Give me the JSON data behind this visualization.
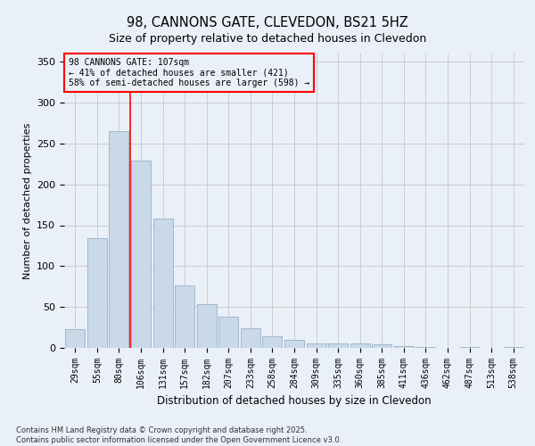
{
  "title1": "98, CANNONS GATE, CLEVEDON, BS21 5HZ",
  "title2": "Size of property relative to detached houses in Clevedon",
  "xlabel": "Distribution of detached houses by size in Clevedon",
  "ylabel": "Number of detached properties",
  "categories": [
    "29sqm",
    "55sqm",
    "80sqm",
    "106sqm",
    "131sqm",
    "157sqm",
    "182sqm",
    "207sqm",
    "233sqm",
    "258sqm",
    "284sqm",
    "309sqm",
    "335sqm",
    "360sqm",
    "385sqm",
    "411sqm",
    "436sqm",
    "462sqm",
    "487sqm",
    "513sqm",
    "538sqm"
  ],
  "values": [
    23,
    134,
    265,
    229,
    158,
    76,
    54,
    38,
    24,
    14,
    10,
    6,
    5,
    5,
    4,
    2,
    1,
    0,
    1,
    0,
    1
  ],
  "bar_color": "#c9d9e8",
  "bar_edge_color": "#a0b8cc",
  "grid_color": "#cccccc",
  "bg_color": "#eaf0f8",
  "vline_color": "red",
  "vline_x": 2.5,
  "annotation_text": "98 CANNONS GATE: 107sqm\n← 41% of detached houses are smaller (421)\n58% of semi-detached houses are larger (598) →",
  "annotation_box_color": "red",
  "footer": "Contains HM Land Registry data © Crown copyright and database right 2025.\nContains public sector information licensed under the Open Government Licence v3.0.",
  "ylim": [
    0,
    360
  ],
  "yticks": [
    0,
    50,
    100,
    150,
    200,
    250,
    300,
    350
  ]
}
